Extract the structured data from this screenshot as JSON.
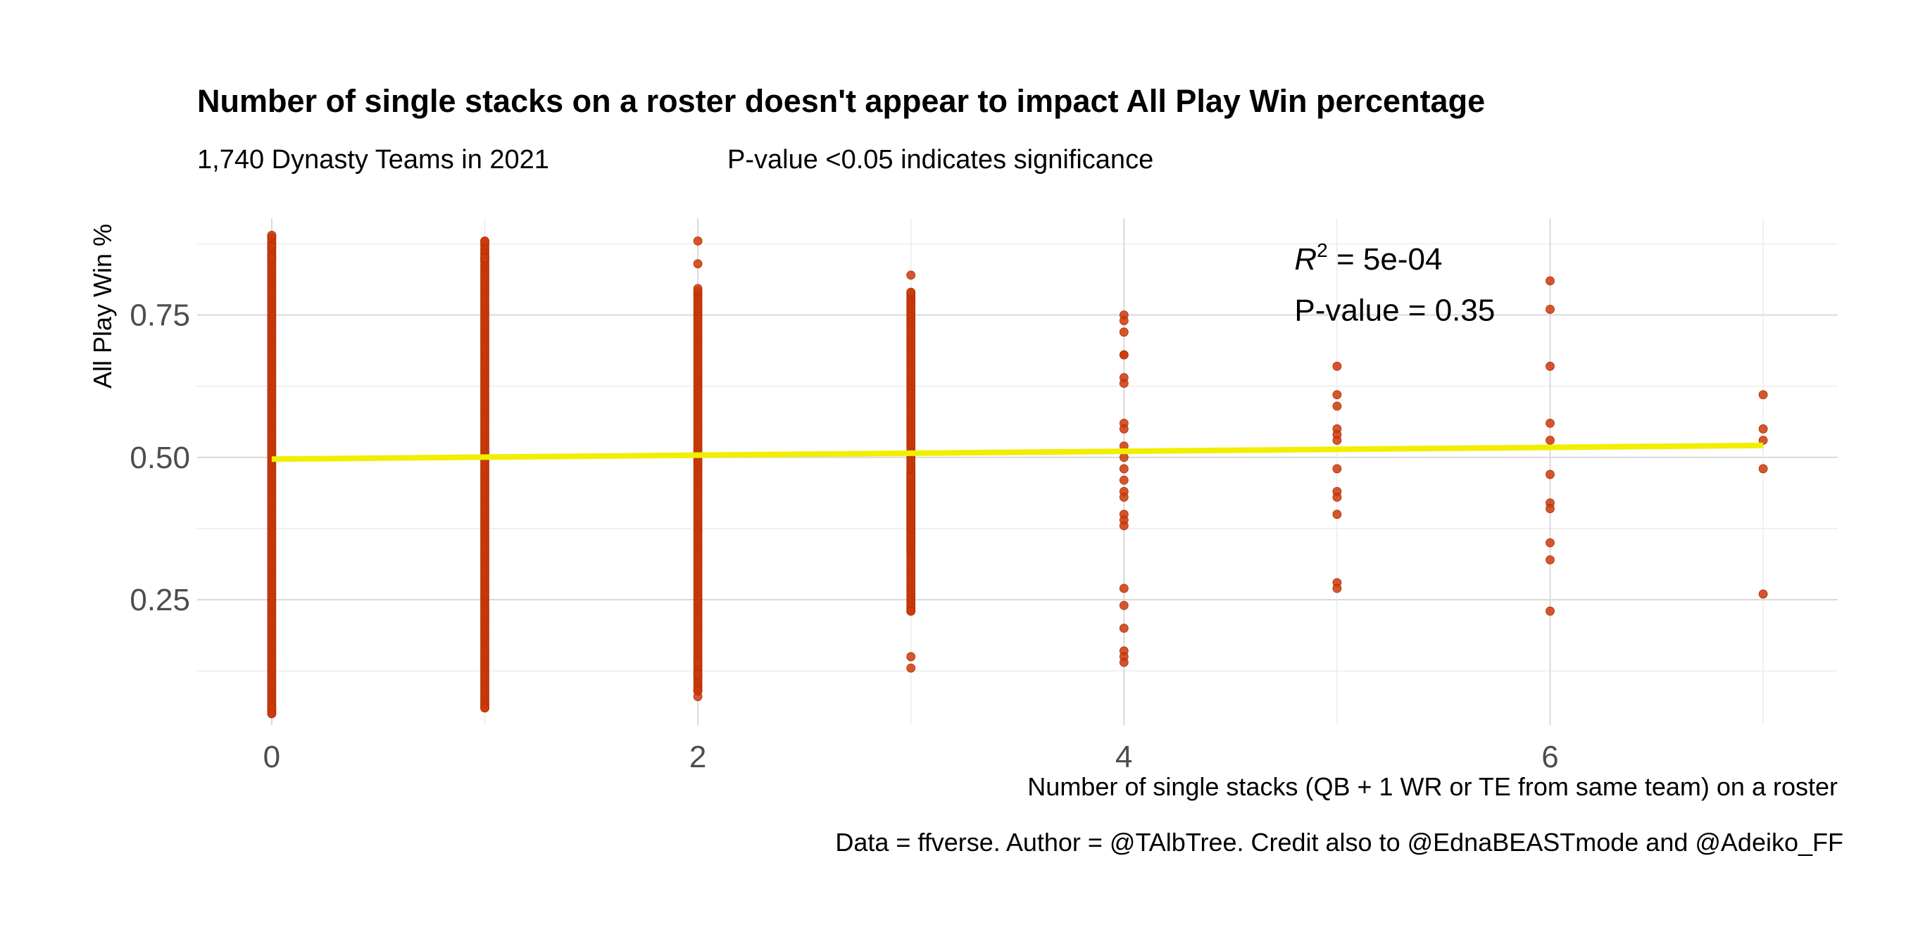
{
  "chart_data": {
    "type": "scatter",
    "title": "Number of single stacks on a roster doesn't appear to impact All Play Win percentage",
    "subtitle_left": "1,740 Dynasty Teams in 2021",
    "subtitle_right": "P-value <0.05 indicates significance",
    "xlabel": "Number of single stacks (QB + 1 WR or TE from same team) on a roster",
    "ylabel": "All Play Win %",
    "caption": "Data = ffverse. Author = @TAlbTree. Credit also to @EdnaBEASTmode and @Adeiko_FF",
    "xlim": [
      -0.35,
      7.35
    ],
    "ylim": [
      0.03,
      0.92
    ],
    "x_ticks": [
      0,
      2,
      4,
      6
    ],
    "x_tick_labels": [
      "0",
      "2",
      "4",
      "6"
    ],
    "y_ticks": [
      0.25,
      0.5,
      0.75
    ],
    "y_tick_labels": [
      "0.25",
      "0.50",
      "0.75"
    ],
    "grid": true,
    "point_color": "#cc3a0a",
    "line_color": "#f2ee00",
    "columns": [
      {
        "x": 0,
        "ranges": [
          [
            0.05,
            0.89
          ]
        ],
        "extra": [
          0.85,
          0.87,
          0.89,
          0.06,
          0.05
        ]
      },
      {
        "x": 1,
        "ranges": [
          [
            0.06,
            0.88
          ]
        ],
        "extra": [
          0.85,
          0.88,
          0.06
        ]
      },
      {
        "x": 2,
        "ranges": [
          [
            0.09,
            0.8
          ]
        ],
        "extra": [
          0.84,
          0.88,
          0.08,
          0.09,
          0.12,
          0.14
        ]
      },
      {
        "x": 3,
        "ranges": [
          [
            0.23,
            0.79
          ],
          [
            0.34,
            0.47
          ]
        ],
        "extra": [
          0.82,
          0.79,
          0.15,
          0.13,
          0.23
        ]
      },
      {
        "x": 4,
        "points": [
          0.75,
          0.74,
          0.72,
          0.68,
          0.68,
          0.64,
          0.63,
          0.56,
          0.55,
          0.52,
          0.5,
          0.48,
          0.46,
          0.44,
          0.43,
          0.4,
          0.39,
          0.38,
          0.27,
          0.24,
          0.2,
          0.16,
          0.15,
          0.14
        ]
      },
      {
        "x": 5,
        "points": [
          0.66,
          0.61,
          0.59,
          0.55,
          0.54,
          0.53,
          0.48,
          0.44,
          0.43,
          0.4,
          0.28,
          0.27
        ]
      },
      {
        "x": 6,
        "points": [
          0.81,
          0.76,
          0.66,
          0.56,
          0.53,
          0.47,
          0.42,
          0.41,
          0.35,
          0.32,
          0.23
        ]
      },
      {
        "x": 7,
        "points": [
          0.61,
          0.55,
          0.53,
          0.48,
          0.26
        ]
      }
    ],
    "regression": {
      "x": [
        0,
        7
      ],
      "y": [
        0.497,
        0.521
      ]
    },
    "annotation": {
      "r2_label": "R",
      "r2_sup": "2",
      "r2_value": " = 5e-04",
      "p_value": "P-value = 0.35",
      "x": 4.8,
      "y_top": 0.83,
      "y_bottom": 0.74
    }
  }
}
